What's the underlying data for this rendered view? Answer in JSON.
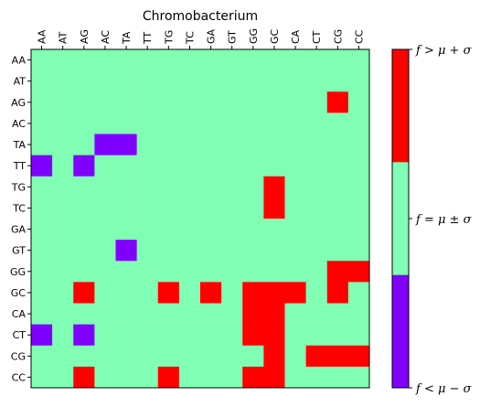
{
  "chart_data": {
    "type": "heatmap",
    "title": "Chromobacterium",
    "categories_x": [
      "AA",
      "AT",
      "AG",
      "AC",
      "TA",
      "TT",
      "TG",
      "TC",
      "GA",
      "GT",
      "GG",
      "GC",
      "CA",
      "CT",
      "CG",
      "CC"
    ],
    "categories_y": [
      "AA",
      "AT",
      "AG",
      "AC",
      "TA",
      "TT",
      "TG",
      "TC",
      "GA",
      "GT",
      "GG",
      "GC",
      "CA",
      "CT",
      "CG",
      "CC"
    ],
    "levels": [
      -1,
      0,
      1
    ],
    "values": [
      [
        0,
        0,
        0,
        0,
        0,
        0,
        0,
        0,
        0,
        0,
        0,
        0,
        0,
        0,
        0,
        0
      ],
      [
        0,
        0,
        0,
        0,
        0,
        0,
        0,
        0,
        0,
        0,
        0,
        0,
        0,
        0,
        0,
        0
      ],
      [
        0,
        0,
        0,
        0,
        0,
        0,
        0,
        0,
        0,
        0,
        0,
        0,
        0,
        0,
        1,
        0
      ],
      [
        0,
        0,
        0,
        0,
        0,
        0,
        0,
        0,
        0,
        0,
        0,
        0,
        0,
        0,
        0,
        0
      ],
      [
        0,
        0,
        0,
        -1,
        -1,
        0,
        0,
        0,
        0,
        0,
        0,
        0,
        0,
        0,
        0,
        0
      ],
      [
        -1,
        0,
        -1,
        0,
        0,
        0,
        0,
        0,
        0,
        0,
        0,
        0,
        0,
        0,
        0,
        0
      ],
      [
        0,
        0,
        0,
        0,
        0,
        0,
        0,
        0,
        0,
        0,
        0,
        1,
        0,
        0,
        0,
        0
      ],
      [
        0,
        0,
        0,
        0,
        0,
        0,
        0,
        0,
        0,
        0,
        0,
        1,
        0,
        0,
        0,
        0
      ],
      [
        0,
        0,
        0,
        0,
        0,
        0,
        0,
        0,
        0,
        0,
        0,
        0,
        0,
        0,
        0,
        0
      ],
      [
        0,
        0,
        0,
        0,
        -1,
        0,
        0,
        0,
        0,
        0,
        0,
        0,
        0,
        0,
        0,
        0
      ],
      [
        0,
        0,
        0,
        0,
        0,
        0,
        0,
        0,
        0,
        0,
        0,
        0,
        0,
        0,
        1,
        1
      ],
      [
        0,
        0,
        1,
        0,
        0,
        0,
        1,
        0,
        1,
        0,
        1,
        1,
        1,
        0,
        1,
        0
      ],
      [
        0,
        0,
        0,
        0,
        0,
        0,
        0,
        0,
        0,
        0,
        1,
        1,
        0,
        0,
        0,
        0
      ],
      [
        -1,
        0,
        -1,
        0,
        0,
        0,
        0,
        0,
        0,
        0,
        1,
        1,
        0,
        0,
        0,
        0
      ],
      [
        0,
        0,
        0,
        0,
        0,
        0,
        0,
        0,
        0,
        0,
        0,
        1,
        0,
        1,
        1,
        1
      ],
      [
        0,
        0,
        1,
        0,
        0,
        0,
        1,
        0,
        0,
        0,
        1,
        1,
        0,
        0,
        0,
        0
      ]
    ],
    "colorbar_labels": [
      "f < μ − σ",
      "f = μ ± σ",
      "f > μ + σ"
    ],
    "colors": {
      "low": "#8000ff",
      "mid": "#80ffb4",
      "high": "#ff0000"
    }
  }
}
